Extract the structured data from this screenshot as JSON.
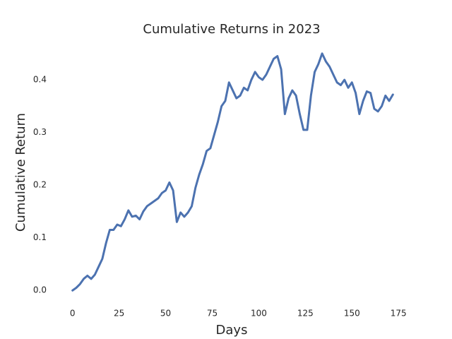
{
  "chart_data": {
    "type": "line",
    "title": "Cumulative Returns in 2023",
    "x_label": "Days",
    "y_label": "Cumulative Return",
    "x": [
      0,
      2,
      4,
      6,
      8,
      10,
      12,
      14,
      16,
      18,
      20,
      22,
      24,
      26,
      28,
      30,
      32,
      34,
      36,
      38,
      40,
      42,
      44,
      46,
      48,
      50,
      52,
      54,
      56,
      58,
      60,
      62,
      64,
      66,
      68,
      70,
      72,
      74,
      76,
      78,
      80,
      82,
      84,
      86,
      88,
      90,
      92,
      94,
      96,
      98,
      100,
      102,
      104,
      106,
      108,
      110,
      112,
      114,
      116,
      118,
      120,
      122,
      124,
      126,
      128,
      130,
      132,
      134,
      136,
      138,
      140,
      142,
      144,
      146,
      148,
      150,
      152,
      154,
      156,
      158,
      160,
      162,
      164,
      166,
      168,
      170,
      172
    ],
    "series": [
      {
        "name": "Cumulative Return",
        "color": "#4c72b0",
        "values": [
          0.0,
          0.005,
          0.012,
          0.022,
          0.028,
          0.022,
          0.03,
          0.045,
          0.06,
          0.09,
          0.115,
          0.115,
          0.125,
          0.122,
          0.135,
          0.152,
          0.14,
          0.142,
          0.135,
          0.15,
          0.16,
          0.165,
          0.17,
          0.175,
          0.185,
          0.19,
          0.205,
          0.19,
          0.13,
          0.148,
          0.14,
          0.148,
          0.16,
          0.195,
          0.22,
          0.24,
          0.265,
          0.27,
          0.295,
          0.32,
          0.35,
          0.36,
          0.395,
          0.38,
          0.365,
          0.37,
          0.385,
          0.38,
          0.4,
          0.415,
          0.405,
          0.4,
          0.41,
          0.425,
          0.44,
          0.445,
          0.42,
          0.335,
          0.365,
          0.38,
          0.37,
          0.335,
          0.305,
          0.305,
          0.37,
          0.415,
          0.43,
          0.45,
          0.435,
          0.425,
          0.41,
          0.395,
          0.39,
          0.4,
          0.385,
          0.395,
          0.375,
          0.335,
          0.36,
          0.378,
          0.375,
          0.345,
          0.34,
          0.35,
          0.37,
          0.36,
          0.372
        ]
      }
    ],
    "xlim": [
      -8.6,
      180.6
    ],
    "ylim": [
      -0.0225,
      0.4725
    ],
    "xticks": [
      0,
      25,
      50,
      75,
      100,
      125,
      150,
      175
    ],
    "yticks": [
      {
        "value": 0,
        "label": "0.0"
      },
      0.1,
      0.2,
      0.3,
      0.4
    ],
    "grid": false
  }
}
